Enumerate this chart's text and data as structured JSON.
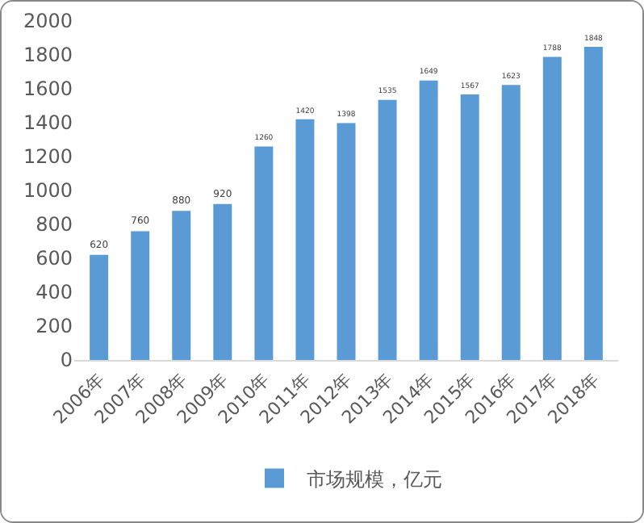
{
  "chart_data": {
    "type": "bar",
    "categories": [
      "2006年",
      "2007年",
      "2008年",
      "2009年",
      "2010年",
      "2011年",
      "2012年",
      "2013年",
      "2014年",
      "2015年",
      "2016年",
      "2017年",
      "2018年"
    ],
    "series": [
      {
        "name": "市场规模，亿元",
        "color": "#5b9bd5",
        "values": [
          620,
          760,
          880,
          920,
          1260,
          1420,
          1398,
          1535,
          1649,
          1567,
          1623,
          1788,
          1848
        ]
      }
    ],
    "ylim": [
      0,
      2000
    ],
    "yticks": [
      0,
      200,
      400,
      600,
      800,
      1000,
      1200,
      1400,
      1600,
      1800,
      2000
    ],
    "grid": false,
    "legend": "bottom",
    "data_labels": true
  }
}
